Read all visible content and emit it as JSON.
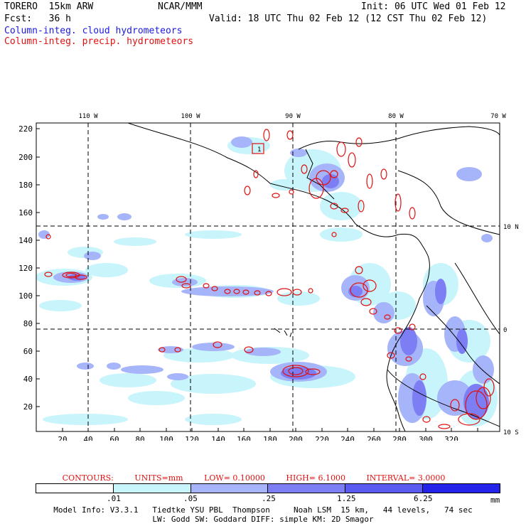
{
  "header": {
    "model": "TORERO  15km ARW",
    "org": "NCAR/MMM",
    "init": "Init: 06 UTC Wed 01 Feb 12",
    "fcst": "Fcst:   36 h",
    "valid": "Valid: 18 UTC Thu 02 Feb 12 (12 CST Thu 02 Feb 12)",
    "field_cloud": "Column-integ. cloud hydrometeors",
    "field_precip": "Column-integ. precip. hydrometeors"
  },
  "map": {
    "lon_labels": [
      "110 W",
      "100 W",
      "90 W",
      "80 W",
      "70 W"
    ],
    "lat_labels": [
      "10 N",
      "0",
      "10 S"
    ],
    "y_ticks": [
      "220",
      "200",
      "180",
      "160",
      "140",
      "120",
      "100",
      "80",
      "60",
      "40",
      "20"
    ],
    "x_ticks": [
      "20",
      "40",
      "60",
      "80",
      "100",
      "120",
      "140",
      "160",
      "180",
      "200",
      "220",
      "240",
      "260",
      "280",
      "300",
      "320"
    ],
    "precip_box_label": "1"
  },
  "contours": {
    "label": "CONTOURS:",
    "units": "UNITS=mm",
    "low": "LOW= 0.10000",
    "high": "HIGH= 6.1000",
    "interval": "INTERVAL= 3.0000"
  },
  "legend": {
    "colors": [
      "#ffffff",
      "#c8f4fb",
      "#a6b4fa",
      "#7d7ef4",
      "#5a5bf0",
      "#2323ea"
    ],
    "labels": [
      ".01",
      ".05",
      ".25",
      "1.25",
      "6.25"
    ],
    "units": "mm"
  },
  "footer": {
    "line1": "Model Info: V3.3.1   Tiedtke YSU PBL  Thompson     Noah LSM  15 km,   44 levels,   74 sec",
    "line2": "LW: Godd SW: Goddard DIFF: simple KM: 2D Smagor"
  }
}
